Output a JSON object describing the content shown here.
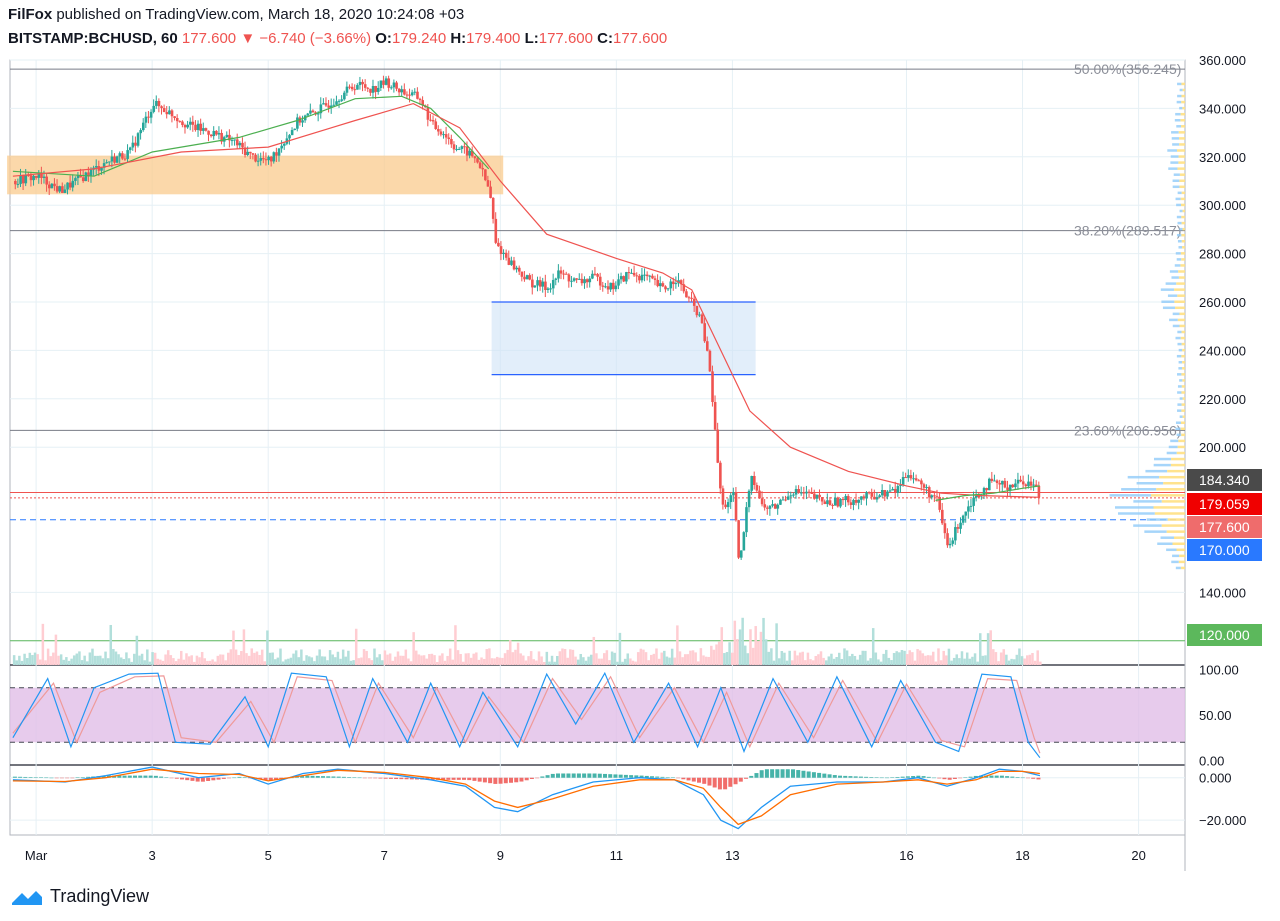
{
  "header": {
    "publisher": "FilFox",
    "published_on": "published on TradingView.com, March 18, 2020 10:24:08 +03",
    "symbol": "BITSTAMP:BCHUSD, 60",
    "last": "177.600",
    "change": "−6.740 (−3.66%)",
    "o_label": "O:",
    "o": "179.240",
    "h_label": "H:",
    "h": "179.400",
    "l_label": "L:",
    "l": "177.600",
    "c_label": "C:",
    "c": "177.600"
  },
  "footer": {
    "brand": "TradingView"
  },
  "colors": {
    "up": "#26a69a",
    "down": "#ef5350",
    "ema_fast": "#4caf50",
    "ema_slow": "#ef5350",
    "fib": "#787b86",
    "supply_zone": "#f9cb8e",
    "demand_zone": "#cfe3f7",
    "demand_border": "#2962ff",
    "stoch_bg": "#e1bee7",
    "stoch_k": "#2196f3",
    "stoch_d": "#ef9a9a",
    "macd": "#2196f3",
    "signal": "#ff6d00",
    "hist_up": "#26a69a",
    "hist_down": "#ef5350",
    "tag_dark": "#4a4a4a",
    "tag_red": "#f00000",
    "tag_pink": "#ef6c6c",
    "tag_blue": "#2979ff",
    "tag_green": "#5cb85c"
  },
  "chart_data": [
    {
      "type": "candlestick",
      "title": "BITSTAMP:BCHUSD, 60",
      "ylim": [
        110,
        360
      ],
      "y_ticks": [
        "360.000",
        "340.000",
        "320.000",
        "300.000",
        "280.000",
        "260.000",
        "240.000",
        "220.000",
        "200.000",
        "140.000"
      ],
      "x_ticks": [
        "Mar",
        "3",
        "5",
        "7",
        "9",
        "11",
        "13",
        "16",
        "18",
        "20"
      ],
      "x_tick_values": [
        1.0,
        3.0,
        5.0,
        7.0,
        9.0,
        11.0,
        13.0,
        16.0,
        18.0,
        20.0
      ],
      "close_path": [
        [
          0.6,
          310
        ],
        [
          1.0,
          312
        ],
        [
          1.4,
          306
        ],
        [
          1.8,
          312
        ],
        [
          2.2,
          318
        ],
        [
          2.6,
          322
        ],
        [
          3.0,
          342
        ],
        [
          3.3,
          338
        ],
        [
          3.6,
          333
        ],
        [
          4.0,
          330
        ],
        [
          4.4,
          326
        ],
        [
          4.7,
          320
        ],
        [
          5.0,
          318
        ],
        [
          5.2,
          325
        ],
        [
          5.5,
          335
        ],
        [
          5.9,
          340
        ],
        [
          6.2,
          345
        ],
        [
          6.5,
          350
        ],
        [
          6.8,
          348
        ],
        [
          7.0,
          351
        ],
        [
          7.3,
          347
        ],
        [
          7.6,
          344
        ],
        [
          7.8,
          333
        ],
        [
          8.0,
          330
        ],
        [
          8.2,
          324
        ],
        [
          8.4,
          322
        ],
        [
          8.6,
          318
        ],
        [
          8.8,
          305
        ],
        [
          8.9,
          284
        ],
        [
          9.2,
          275
        ],
        [
          9.5,
          268
        ],
        [
          9.8,
          266
        ],
        [
          10.0,
          272
        ],
        [
          10.3,
          268
        ],
        [
          10.6,
          270
        ],
        [
          10.9,
          266
        ],
        [
          11.2,
          272
        ],
        [
          11.5,
          270
        ],
        [
          11.8,
          265
        ],
        [
          12.0,
          270
        ],
        [
          12.2,
          262
        ],
        [
          12.4,
          255
        ],
        [
          12.5,
          245
        ],
        [
          12.6,
          230
        ],
        [
          12.7,
          200
        ],
        [
          12.8,
          175
        ],
        [
          13.0,
          180
        ],
        [
          13.1,
          150
        ],
        [
          13.3,
          190
        ],
        [
          13.5,
          175
        ],
        [
          13.7,
          175
        ],
        [
          14.0,
          182
        ],
        [
          14.3,
          180
        ],
        [
          14.6,
          177
        ],
        [
          15.0,
          178
        ],
        [
          15.4,
          180
        ],
        [
          15.8,
          182
        ],
        [
          16.0,
          190
        ],
        [
          16.2,
          185
        ],
        [
          16.5,
          178
        ],
        [
          16.7,
          158
        ],
        [
          16.9,
          170
        ],
        [
          17.1,
          178
        ],
        [
          17.4,
          185
        ],
        [
          17.7,
          184
        ],
        [
          18.0,
          186
        ],
        [
          18.2,
          184
        ],
        [
          18.3,
          178
        ]
      ],
      "series": [
        {
          "name": "",
          "kind": "ema_fast",
          "points": [
            [
              0.6,
              314
            ],
            [
              2.0,
              312
            ],
            [
              3.0,
              322
            ],
            [
              4.5,
              328
            ],
            [
              5.5,
              335
            ],
            [
              6.5,
              344
            ],
            [
              7.3,
              345
            ],
            [
              7.8,
              340
            ],
            [
              8.3,
              328
            ],
            [
              8.8,
              315
            ]
          ]
        },
        {
          "name": "",
          "kind": "ema_slow",
          "points": [
            [
              0.6,
              312
            ],
            [
              2.0,
              315
            ],
            [
              3.5,
              322
            ],
            [
              5.0,
              324
            ],
            [
              6.5,
              335
            ],
            [
              7.5,
              342
            ],
            [
              8.3,
              332
            ],
            [
              9.0,
              310
            ],
            [
              9.8,
              288
            ],
            [
              11.0,
              278
            ],
            [
              11.8,
              272
            ],
            [
              12.3,
              265
            ],
            [
              12.7,
              245
            ],
            [
              13.3,
              215
            ],
            [
              14.0,
              200
            ],
            [
              15.0,
              190
            ],
            [
              16.0,
              184
            ],
            [
              16.6,
              181
            ],
            [
              17.3,
              180
            ],
            [
              18.3,
              179.3
            ]
          ]
        },
        {
          "name": "",
          "kind": "ema_fast_late",
          "points": [
            [
              16.5,
              178
            ],
            [
              17.0,
              180
            ],
            [
              17.5,
              181
            ],
            [
              18.0,
              183
            ],
            [
              18.3,
              184
            ]
          ]
        }
      ],
      "fib_levels": [
        {
          "label": "50.00%(356.245)",
          "value": 356.245
        },
        {
          "label": "38.20%(289.517)",
          "value": 289.517
        },
        {
          "label": "23.60%(206.956)",
          "value": 206.956
        }
      ],
      "zones": [
        {
          "kind": "supply",
          "x": [
            0.5,
            9.05
          ],
          "y": [
            304.5,
            320.5
          ]
        },
        {
          "kind": "demand",
          "x": [
            8.85,
            13.4
          ],
          "y": [
            230,
            260
          ]
        }
      ],
      "horizontal_lines": [
        {
          "value": 181.3,
          "style": "solid",
          "color": "#ef5350"
        },
        {
          "value": 179.059,
          "style": "dotted",
          "color": "#ef5350"
        },
        {
          "value": 170.0,
          "style": "dashed",
          "color": "#2979ff"
        },
        {
          "value": 120.0,
          "style": "solid",
          "color": "#5cb85c"
        }
      ],
      "price_tags": [
        {
          "text": "184.340",
          "value": 184.34,
          "color": "#4a4a4a"
        },
        {
          "text": "179.059",
          "value": 179.059,
          "color": "#f00000"
        },
        {
          "text": "177.600",
          "value": 177.6,
          "color": "#ef6c6c"
        },
        {
          "text": "170.000",
          "value": 170.0,
          "color": "#2979ff"
        },
        {
          "text": "120.000",
          "value": 120.0,
          "color": "#5cb85c"
        }
      ]
    },
    {
      "type": "line",
      "name": "stochastic",
      "ylim": [
        -5,
        105
      ],
      "y_ticks": [
        "100.00",
        "50.00",
        "0.00"
      ],
      "bands": [
        20,
        80
      ],
      "k_path": [
        [
          0.6,
          25
        ],
        [
          1.2,
          90
        ],
        [
          1.6,
          15
        ],
        [
          2.0,
          80
        ],
        [
          2.6,
          95
        ],
        [
          3.1,
          96
        ],
        [
          3.4,
          20
        ],
        [
          4.0,
          18
        ],
        [
          4.6,
          70
        ],
        [
          5.0,
          15
        ],
        [
          5.4,
          96
        ],
        [
          6.0,
          92
        ],
        [
          6.4,
          15
        ],
        [
          6.8,
          90
        ],
        [
          7.4,
          20
        ],
        [
          7.8,
          85
        ],
        [
          8.3,
          15
        ],
        [
          8.7,
          75
        ],
        [
          9.3,
          15
        ],
        [
          9.8,
          95
        ],
        [
          10.3,
          40
        ],
        [
          10.8,
          96
        ],
        [
          11.3,
          20
        ],
        [
          11.9,
          85
        ],
        [
          12.4,
          15
        ],
        [
          12.8,
          80
        ],
        [
          13.2,
          10
        ],
        [
          13.7,
          90
        ],
        [
          14.3,
          20
        ],
        [
          14.8,
          92
        ],
        [
          15.4,
          15
        ],
        [
          15.9,
          88
        ],
        [
          16.5,
          20
        ],
        [
          16.9,
          10
        ],
        [
          17.3,
          95
        ],
        [
          17.8,
          92
        ],
        [
          18.1,
          20
        ],
        [
          18.3,
          3
        ]
      ],
      "d_path": [
        [
          0.6,
          30
        ],
        [
          1.3,
          85
        ],
        [
          1.7,
          20
        ],
        [
          2.1,
          75
        ],
        [
          2.7,
          92
        ],
        [
          3.2,
          93
        ],
        [
          3.5,
          25
        ],
        [
          4.1,
          20
        ],
        [
          4.7,
          65
        ],
        [
          5.1,
          20
        ],
        [
          5.5,
          92
        ],
        [
          6.1,
          88
        ],
        [
          6.5,
          20
        ],
        [
          6.9,
          85
        ],
        [
          7.5,
          25
        ],
        [
          7.9,
          80
        ],
        [
          8.4,
          20
        ],
        [
          8.8,
          70
        ],
        [
          9.4,
          20
        ],
        [
          9.9,
          90
        ],
        [
          10.4,
          45
        ],
        [
          10.9,
          92
        ],
        [
          11.4,
          25
        ],
        [
          12.0,
          80
        ],
        [
          12.5,
          20
        ],
        [
          12.9,
          75
        ],
        [
          13.3,
          15
        ],
        [
          13.8,
          85
        ],
        [
          14.4,
          25
        ],
        [
          14.9,
          88
        ],
        [
          15.5,
          20
        ],
        [
          16.0,
          84
        ],
        [
          16.6,
          22
        ],
        [
          17.0,
          15
        ],
        [
          17.4,
          90
        ],
        [
          17.9,
          88
        ],
        [
          18.2,
          25
        ],
        [
          18.3,
          8
        ]
      ]
    },
    {
      "type": "line",
      "name": "macd",
      "ylim": [
        -27,
        6
      ],
      "y_ticks": [
        "0.000",
        "−20.000"
      ],
      "macd_path": [
        [
          0.6,
          -1
        ],
        [
          1.5,
          -2
        ],
        [
          2.2,
          1
        ],
        [
          3.0,
          5
        ],
        [
          3.8,
          0
        ],
        [
          4.5,
          2
        ],
        [
          5.0,
          -3
        ],
        [
          5.6,
          2
        ],
        [
          6.2,
          4
        ],
        [
          7.0,
          2
        ],
        [
          7.8,
          -1
        ],
        [
          8.4,
          -4
        ],
        [
          8.9,
          -14
        ],
        [
          9.3,
          -16
        ],
        [
          9.9,
          -8
        ],
        [
          10.6,
          -2
        ],
        [
          11.4,
          0
        ],
        [
          12.0,
          -1
        ],
        [
          12.5,
          -8
        ],
        [
          12.8,
          -20
        ],
        [
          13.1,
          -24
        ],
        [
          13.5,
          -14
        ],
        [
          14.0,
          -4
        ],
        [
          14.8,
          -2
        ],
        [
          15.6,
          -2
        ],
        [
          16.2,
          0
        ],
        [
          16.7,
          -4
        ],
        [
          17.2,
          0
        ],
        [
          17.6,
          4
        ],
        [
          18.0,
          3
        ],
        [
          18.3,
          1
        ]
      ],
      "signal_path": [
        [
          0.6,
          -1.5
        ],
        [
          1.5,
          -1.8
        ],
        [
          2.2,
          0
        ],
        [
          3.0,
          4
        ],
        [
          3.8,
          2
        ],
        [
          4.5,
          1.5
        ],
        [
          5.0,
          -1.5
        ],
        [
          5.6,
          1
        ],
        [
          6.2,
          3.5
        ],
        [
          7.0,
          2.5
        ],
        [
          7.8,
          0
        ],
        [
          8.4,
          -3
        ],
        [
          8.9,
          -11
        ],
        [
          9.3,
          -14
        ],
        [
          9.9,
          -10
        ],
        [
          10.6,
          -4
        ],
        [
          11.4,
          -1
        ],
        [
          12.0,
          -1
        ],
        [
          12.5,
          -5
        ],
        [
          12.8,
          -14
        ],
        [
          13.1,
          -22
        ],
        [
          13.5,
          -18
        ],
        [
          14.0,
          -8
        ],
        [
          14.8,
          -3
        ],
        [
          15.6,
          -2
        ],
        [
          16.2,
          -1
        ],
        [
          16.7,
          -3
        ],
        [
          17.2,
          -1
        ],
        [
          17.6,
          3
        ],
        [
          18.0,
          3
        ],
        [
          18.3,
          2
        ]
      ]
    }
  ]
}
